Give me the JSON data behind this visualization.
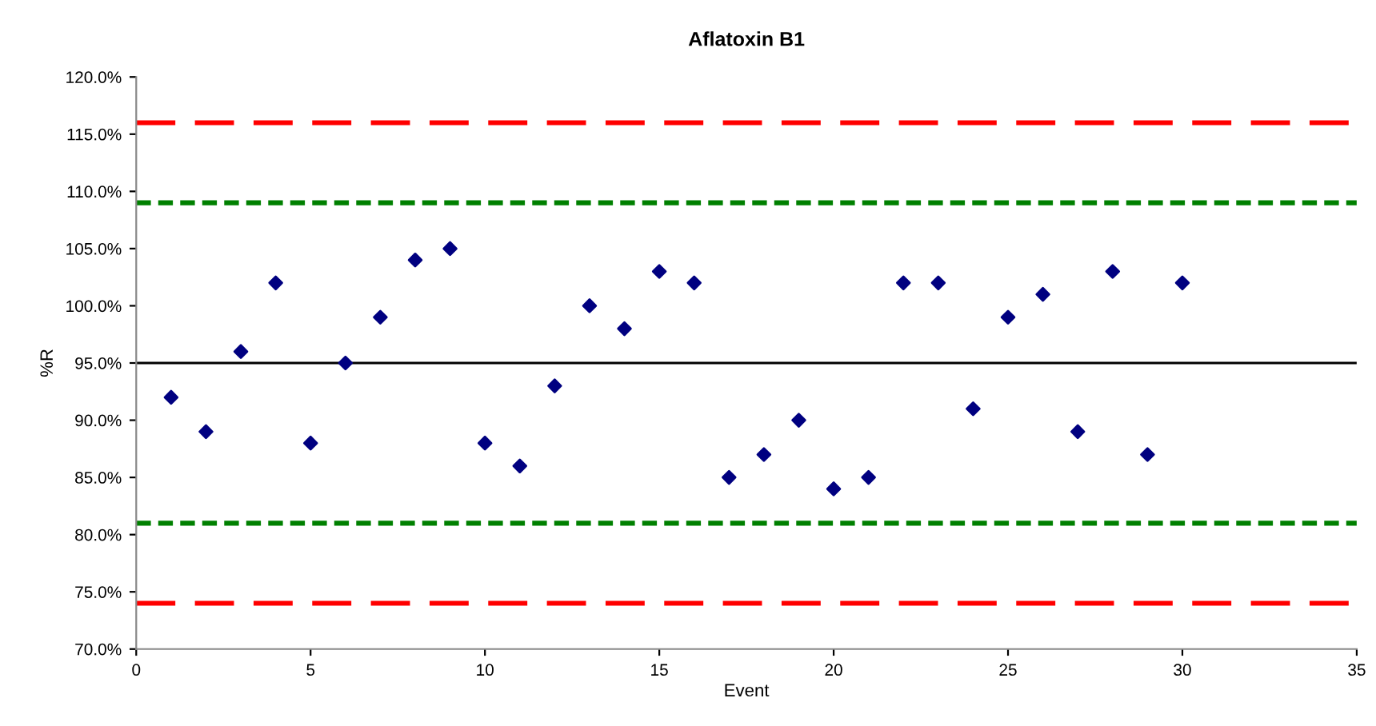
{
  "chart_data": {
    "type": "scatter",
    "title": "Aflatoxin B1",
    "xlabel": "Event",
    "ylabel": "%R",
    "x": [
      1,
      2,
      3,
      4,
      5,
      6,
      7,
      8,
      9,
      10,
      11,
      12,
      13,
      14,
      15,
      16,
      17,
      18,
      19,
      20,
      21,
      22,
      23,
      24,
      25,
      26,
      27,
      28,
      29,
      30
    ],
    "series": [
      {
        "color": "#000080",
        "values": [
          92,
          89,
          96,
          102,
          88,
          95,
          99,
          104,
          105,
          88,
          86,
          93,
          100,
          98,
          103,
          102,
          85,
          87,
          90,
          84,
          85,
          102,
          102,
          91,
          99,
          101,
          89,
          103,
          87,
          102
        ]
      }
    ],
    "marker": "diamond",
    "xlim": [
      0,
      35
    ],
    "xticks": [
      0,
      5,
      10,
      15,
      20,
      25,
      30,
      35
    ],
    "ylim": [
      70,
      120
    ],
    "yticks": [
      {
        "value": 70,
        "label": "70.0%"
      },
      {
        "value": 75,
        "label": "75.0%"
      },
      {
        "value": 80,
        "label": "80.0%"
      },
      {
        "value": 85,
        "label": "85.0%"
      },
      {
        "value": 90,
        "label": "90.0%"
      },
      {
        "value": 95,
        "label": "95.0%"
      },
      {
        "value": 100,
        "label": "100.0%"
      },
      {
        "value": 105,
        "label": "105.0%"
      },
      {
        "value": 110,
        "label": "110.0%"
      },
      {
        "value": 115,
        "label": "115.0%"
      },
      {
        "value": 120,
        "label": "120.0%"
      }
    ],
    "ref_lines": [
      {
        "axis": "y",
        "value": 116,
        "color": "#ff0000",
        "line_style": "dashed"
      },
      {
        "axis": "y",
        "value": 109,
        "color": "#008000",
        "line_style": "dotted"
      },
      {
        "axis": "y",
        "value": 95,
        "color": "#000000",
        "line_style": "solid"
      },
      {
        "axis": "y",
        "value": 81,
        "color": "#008000",
        "line_style": "dotted"
      },
      {
        "axis": "y",
        "value": 74,
        "color": "#ff0000",
        "line_style": "dashed"
      }
    ],
    "grid": false,
    "legend": false
  }
}
